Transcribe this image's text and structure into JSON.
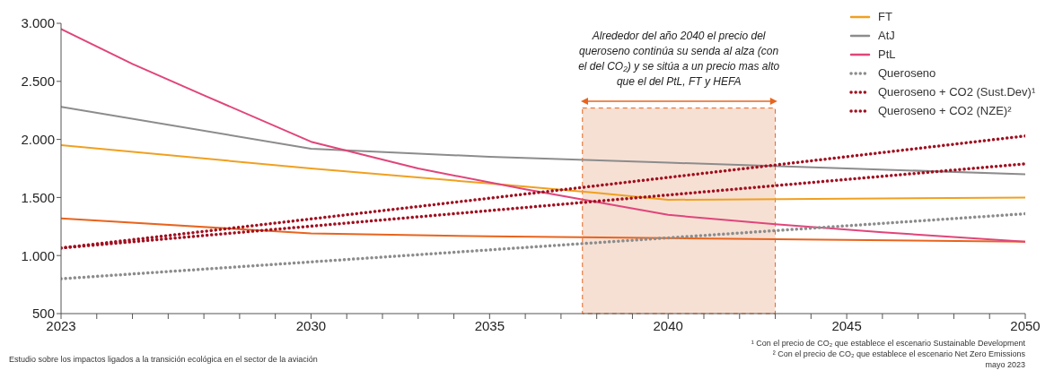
{
  "chart_data": {
    "type": "line",
    "series": [
      {
        "color": "#e8641e",
        "x": [
          2023,
          2030,
          2035,
          2040,
          2045,
          2050
        ],
        "values": [
          1320,
          1190,
          1165,
          1150,
          1135,
          1120
        ]
      },
      {
        "name": "FT",
        "color": "#f0a020",
        "x": [
          2023,
          2030,
          2035,
          2038,
          2040,
          2045,
          2050
        ],
        "values": [
          1950,
          1750,
          1620,
          1540,
          1480,
          1490,
          1500
        ]
      },
      {
        "name": "AtJ",
        "color": "#8c8c8c",
        "x": [
          2023,
          2030,
          2035,
          2040,
          2045,
          2050
        ],
        "values": [
          2280,
          1920,
          1850,
          1800,
          1750,
          1700
        ]
      },
      {
        "name": "PtL",
        "color": "#e0457b",
        "x": [
          2023,
          2025,
          2027,
          2030,
          2033,
          2036,
          2040,
          2043,
          2046,
          2050
        ],
        "values": [
          2950,
          2650,
          2380,
          1980,
          1750,
          1570,
          1350,
          1270,
          1200,
          1120
        ]
      },
      {
        "name": "Queroseno",
        "color": "#8c8c8c",
        "line_style": "dotted",
        "x": [
          2023,
          2050
        ],
        "values": [
          800,
          1360
        ]
      },
      {
        "name": "Queroseno + CO2 (Sust.Dev)¹",
        "color": "#a01020",
        "line_style": "dotted",
        "x": [
          2023,
          2050
        ],
        "values": [
          1065,
          1790
        ]
      },
      {
        "name": "Queroseno + CO2 (NZE)²",
        "color": "#a01020",
        "line_style": "dotted",
        "x": [
          2023,
          2050
        ],
        "values": [
          1065,
          2030
        ]
      }
    ],
    "xlim": [
      2023,
      2050
    ],
    "xticks": [
      2023,
      {
        "value": 2024,
        "label": null
      },
      {
        "value": 2025,
        "label": null
      },
      {
        "value": 2026,
        "label": null
      },
      {
        "value": 2027,
        "label": null
      },
      {
        "value": 2028,
        "label": null
      },
      {
        "value": 2029,
        "label": null
      },
      2030,
      {
        "value": 2031,
        "label": null
      },
      {
        "value": 2032,
        "label": null
      },
      {
        "value": 2033,
        "label": null
      },
      {
        "value": 2034,
        "label": null
      },
      2035,
      {
        "value": 2036,
        "label": null
      },
      {
        "value": 2037,
        "label": null
      },
      {
        "value": 2038,
        "label": null
      },
      {
        "value": 2039,
        "label": null
      },
      2040,
      {
        "value": 2041,
        "label": null
      },
      {
        "value": 2042,
        "label": null
      },
      {
        "value": 2043,
        "label": null
      },
      {
        "value": 2044,
        "label": null
      },
      2045,
      {
        "value": 2046,
        "label": null
      },
      {
        "value": 2047,
        "label": null
      },
      {
        "value": 2048,
        "label": null
      },
      {
        "value": 2049,
        "label": null
      },
      2050
    ],
    "ylim": [
      500,
      3000
    ],
    "yticks": [
      500,
      {
        "value": 1000,
        "label": "1.000"
      },
      {
        "value": 1500,
        "label": "1.500"
      },
      {
        "value": 2000,
        "label": "2.000"
      },
      {
        "value": 2500,
        "label": "2.500"
      },
      {
        "value": 3000,
        "label": "3.000"
      }
    ],
    "bands": [
      {
        "axis": "x",
        "from": 2037.6,
        "to": 2043,
        "color": "#f6e0d4",
        "label": "Alrededor del año 2040 el precio del queroseno continúa su senda al alza (con el del CO₂) y se sitúa a un precio mas alto que el del PtL, FT y HEFA"
      }
    ],
    "annotations": [
      "Estudio sobre los impactos ligados a la transición ecológica en el sector de la aviación",
      "¹ Con el precio de CO₂ que establece el escenario Sustainable Development",
      "² Con el precio de CO₂ que establece el escenario Net Zero Emissions",
      "mayo 2023"
    ],
    "grid": false,
    "legend": "top right",
    "marker": "none",
    "line_style": "solid"
  }
}
